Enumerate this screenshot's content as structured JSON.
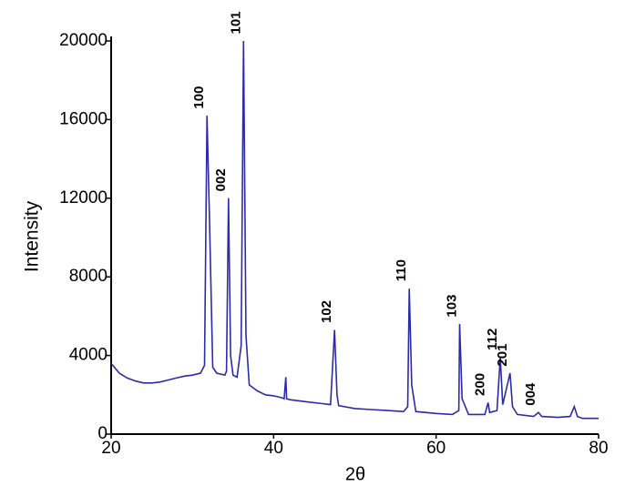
{
  "chart_data": {
    "type": "line",
    "x_label": "2θ",
    "y_label": "Intensity",
    "xlim": [
      20,
      80
    ],
    "xticks": [
      20,
      40,
      60,
      80
    ],
    "ylim": [
      0,
      20000
    ],
    "yticks": [
      0,
      4000,
      8000,
      12000,
      16000,
      20000
    ],
    "grid": false,
    "series": [
      {
        "color": "#2b2ba8",
        "x": [
          20,
          21,
          22,
          23,
          24,
          25,
          26,
          27,
          28,
          29,
          30,
          31,
          31.5,
          31.8,
          32.1,
          32.5,
          33,
          34,
          34.2,
          34.45,
          34.7,
          35,
          35.5,
          36,
          36.3,
          36.6,
          37,
          38,
          39,
          40,
          41,
          41.3,
          41.5,
          41.6,
          42,
          44,
          46,
          47,
          47.5,
          47.8,
          48,
          50,
          52,
          54,
          56,
          56.5,
          56.7,
          57,
          57.5,
          60,
          62,
          62.8,
          62.9,
          63.2,
          64,
          66,
          66.4,
          66.6,
          67.5,
          67.9,
          68.2,
          69.1,
          69.4,
          70,
          72,
          72.6,
          73,
          75,
          76.5,
          77,
          77.4,
          78,
          80
        ],
        "values": [
          3600,
          3100,
          2850,
          2700,
          2600,
          2600,
          2650,
          2750,
          2850,
          2950,
          3000,
          3100,
          3500,
          16200,
          11000,
          3400,
          3100,
          3000,
          3200,
          12000,
          4000,
          3000,
          2900,
          4500,
          20000,
          5000,
          2500,
          2200,
          2000,
          1950,
          1850,
          1800,
          2900,
          1800,
          1750,
          1650,
          1550,
          1500,
          5300,
          2000,
          1450,
          1300,
          1250,
          1200,
          1150,
          1400,
          7400,
          2500,
          1150,
          1050,
          1000,
          1200,
          5600,
          1800,
          1000,
          1000,
          1600,
          1100,
          1200,
          3900,
          1500,
          3100,
          1400,
          1000,
          900,
          1100,
          900,
          850,
          900,
          1400,
          900,
          800,
          800
        ]
      }
    ],
    "annotations": [
      {
        "text": "100",
        "x": 31.8
      },
      {
        "text": "002",
        "x": 34.45
      },
      {
        "text": "101",
        "x": 36.3
      },
      {
        "text": "102",
        "x": 47.5
      },
      {
        "text": "110",
        "x": 56.7
      },
      {
        "text": "103",
        "x": 62.9
      },
      {
        "text": "200",
        "x": 66.4
      },
      {
        "text": "112",
        "x": 67.9
      },
      {
        "text": "201",
        "x": 69.1
      },
      {
        "text": "004",
        "x": 72.6
      }
    ]
  }
}
